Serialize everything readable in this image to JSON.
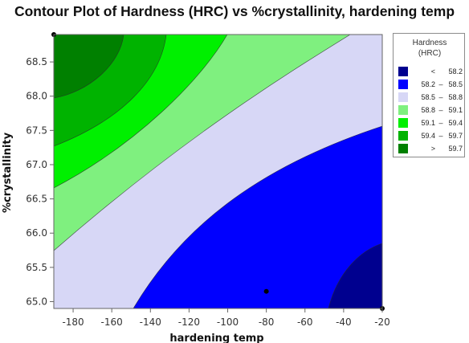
{
  "chart_data": {
    "type": "contour",
    "title": "Contour Plot of Hardness (HRC) vs %crystallinity, hardening temp",
    "xlabel": "hardening temp",
    "ylabel": "%crystallinity",
    "xlim": [
      -190,
      -20
    ],
    "ylim": [
      64.9,
      68.9
    ],
    "x_ticks": [
      -180,
      -160,
      -140,
      -120,
      -100,
      -80,
      -60,
      -40,
      -20
    ],
    "y_ticks": [
      65.0,
      65.5,
      66.0,
      66.5,
      67.0,
      67.5,
      68.0,
      68.5
    ],
    "x_tick_labels": [
      "-180",
      "-160",
      "-140",
      "-120",
      "-100",
      "-80",
      "-60",
      "-40",
      "-20"
    ],
    "y_tick_labels": [
      "65.0",
      "65.5",
      "66.0",
      "66.5",
      "67.0",
      "67.5",
      "68.0",
      "68.5"
    ],
    "grid": false,
    "legend_position": "right",
    "legend": {
      "title_line1": "Hardness",
      "title_line2": "(HRC)",
      "entries": [
        {
          "lo": "<",
          "hi": "58.2",
          "color": "#00008f"
        },
        {
          "lo": "58.2",
          "hi": "58.5",
          "color": "#0000ff"
        },
        {
          "lo": "58.5",
          "hi": "58.8",
          "color": "#d7d7f6"
        },
        {
          "lo": "58.8",
          "hi": "59.1",
          "color": "#7ff07f"
        },
        {
          "lo": "59.1",
          "hi": "59.4",
          "color": "#00f000"
        },
        {
          "lo": "59.4",
          "hi": "59.7",
          "color": "#00b300"
        },
        {
          "lo": ">",
          "hi": "59.7",
          "color": "#008000"
        }
      ]
    },
    "contour_levels": [
      58.2,
      58.5,
      58.8,
      59.1,
      59.4,
      59.7
    ],
    "design_points": [
      {
        "x": -190,
        "y": 68.9
      },
      {
        "x": -80,
        "y": 65.15
      },
      {
        "x": -20,
        "y": 64.9
      }
    ]
  }
}
